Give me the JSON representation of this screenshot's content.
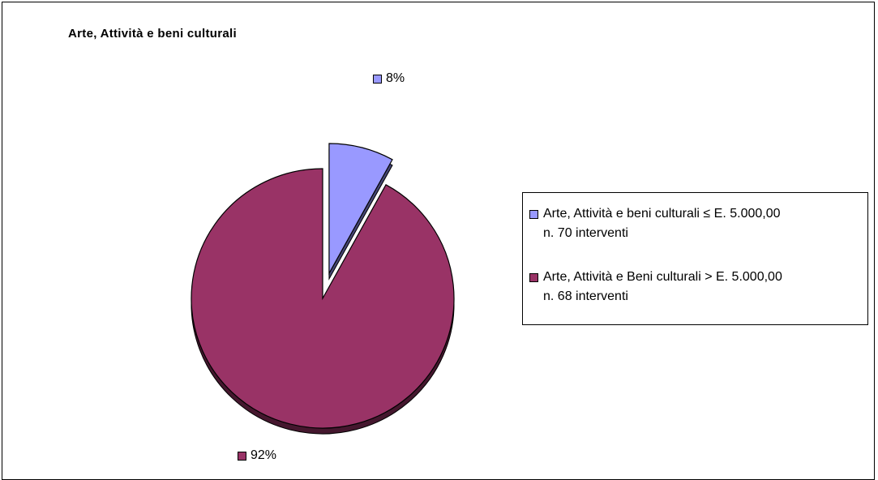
{
  "chart_data": {
    "type": "pie",
    "title": "Arte, Attività e beni culturali",
    "slices": [
      {
        "legend_line1": "Arte, Attività e beni culturali ≤ E. 5.000,00",
        "legend_line2": "n. 70 interventi",
        "value": 8,
        "label": "8%",
        "color": "#9999ff",
        "exploded": true
      },
      {
        "legend_line1": "Arte, Attività e Beni culturali > E. 5.000,00",
        "legend_line2": "n. 68 interventi",
        "value": 92,
        "label": "92%",
        "color": "#993366",
        "exploded": false
      }
    ],
    "legend_position": "right"
  }
}
